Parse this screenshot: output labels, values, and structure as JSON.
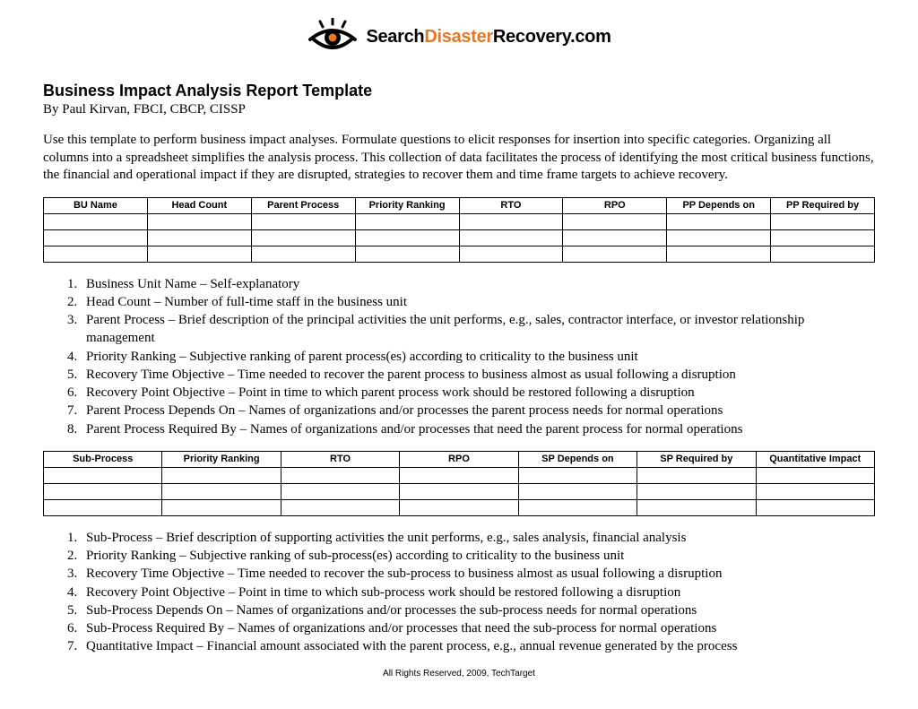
{
  "logo": {
    "seg1": "Search",
    "seg2": "Disaster",
    "seg3": "Recovery.com",
    "eye_color": "#000000",
    "accent_color": "#e87722"
  },
  "title": "Business Impact Analysis Report Template",
  "byline": "By Paul Kirvan, FBCI, CBCP, CISSP",
  "intro": "Use this template to perform business impact analyses. Formulate questions to elicit responses for insertion into specific categories. Organizing all columns into a spreadsheet simplifies the analysis process. This collection of data facilitates the process of identifying the most critical business functions, the financial and operational impact if they are disrupted, strategies to recover them and time frame targets to achieve recovery.",
  "table1": {
    "columns": [
      "BU Name",
      "Head Count",
      "Parent Process",
      "Priority Ranking",
      "RTO",
      "RPO",
      "PP Depends on",
      "PP Required by"
    ],
    "rows": [
      [
        "",
        "",
        "",
        "",
        "",
        "",
        "",
        ""
      ],
      [
        "",
        "",
        "",
        "",
        "",
        "",
        "",
        ""
      ],
      [
        "",
        "",
        "",
        "",
        "",
        "",
        "",
        ""
      ]
    ]
  },
  "definitions1": [
    "Business Unit Name – Self-explanatory",
    "Head Count – Number of full-time staff in the business unit",
    "Parent Process – Brief description of the principal activities the unit performs, e.g., sales, contractor interface, or investor relationship management",
    "Priority Ranking – Subjective ranking of parent process(es) according to criticality to the business unit",
    "Recovery Time Objective – Time needed to recover the parent process to business almost as usual following a disruption",
    "Recovery Point Objective – Point in time to which parent process work should be restored following a disruption",
    "Parent Process Depends On – Names of organizations and/or processes the parent process needs for normal operations",
    "Parent Process Required By – Names of organizations and/or processes that need the parent process for normal operations"
  ],
  "table2": {
    "columns": [
      "Sub-Process",
      "Priority Ranking",
      "RTO",
      "RPO",
      "SP Depends on",
      "SP Required by",
      "Quantitative Impact"
    ],
    "rows": [
      [
        "",
        "",
        "",
        "",
        "",
        "",
        ""
      ],
      [
        "",
        "",
        "",
        "",
        "",
        "",
        ""
      ],
      [
        "",
        "",
        "",
        "",
        "",
        "",
        ""
      ]
    ]
  },
  "definitions2": [
    "Sub-Process – Brief description of supporting activities the unit performs, e.g., sales analysis, financial analysis",
    "Priority Ranking – Subjective ranking of sub-process(es) according to criticality to the business unit",
    "Recovery Time Objective – Time needed to recover the sub-process to business almost as usual following a disruption",
    "Recovery Point Objective – Point in time to which sub-process work should be restored following a disruption",
    "Sub-Process Depends On – Names of organizations and/or processes the sub-process needs for normal operations",
    "Sub-Process Required By – Names of organizations and/or processes that need the sub-process for normal operations",
    "Quantitative Impact – Financial amount associated with the parent process, e.g., annual revenue generated by the process"
  ],
  "footer": "All Rights Reserved, 2009, TechTarget"
}
